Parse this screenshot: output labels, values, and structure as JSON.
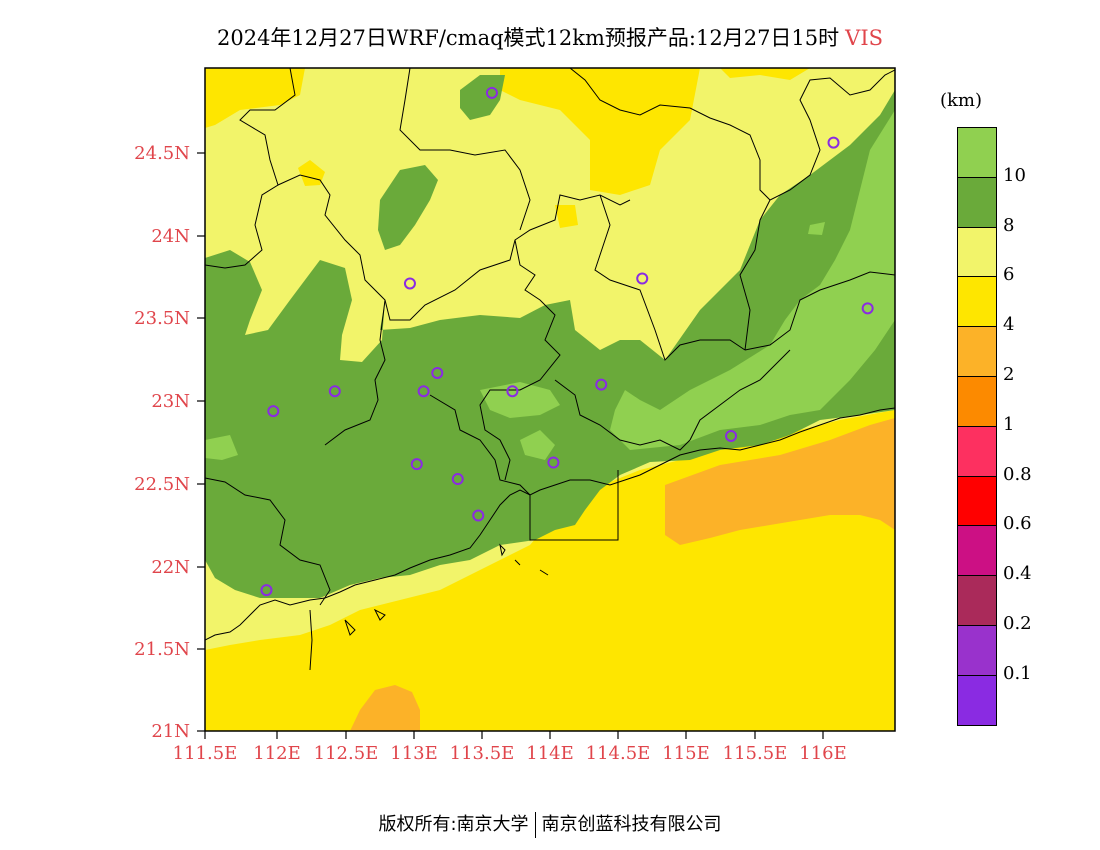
{
  "title": {
    "main": "2024年12月27日WRF/cmaq模式12km预报产品:12月27日15时",
    "variable": "VIS"
  },
  "axes": {
    "lat_labels": [
      "24.5N",
      "24N",
      "23.5N",
      "23N",
      "22.5N",
      "22N",
      "21.5N",
      "21N"
    ],
    "lon_labels": [
      "111.5E",
      "112E",
      "112.5E",
      "113E",
      "113.5E",
      "114E",
      "114.5E",
      "115E",
      "115.5E",
      "116E"
    ]
  },
  "colorbar": {
    "unit": "(km)",
    "colors": [
      "#90d050",
      "#6aaa3a",
      "#f2f46a",
      "#fee600",
      "#fcb228",
      "#fc8a00",
      "#fd3060",
      "#ff0000",
      "#cc1084",
      "#aa2a5a",
      "#9932cc",
      "#8a2be2"
    ],
    "labels": [
      "10",
      "8",
      "6",
      "4",
      "2",
      "1",
      "0.8",
      "0.6",
      "0.4",
      "0.2",
      "0.1"
    ]
  },
  "stations": [
    {
      "lon": 113.6,
      "lat": 24.85
    },
    {
      "lon": 116.1,
      "lat": 24.55
    },
    {
      "lon": 113.0,
      "lat": 23.7
    },
    {
      "lon": 114.7,
      "lat": 23.73
    },
    {
      "lon": 116.35,
      "lat": 23.55
    },
    {
      "lon": 112.0,
      "lat": 22.93
    },
    {
      "lon": 112.45,
      "lat": 23.05
    },
    {
      "lon": 113.1,
      "lat": 23.05
    },
    {
      "lon": 113.2,
      "lat": 23.16
    },
    {
      "lon": 113.75,
      "lat": 23.05
    },
    {
      "lon": 114.4,
      "lat": 23.09
    },
    {
      "lon": 115.35,
      "lat": 22.78
    },
    {
      "lon": 113.05,
      "lat": 22.61
    },
    {
      "lon": 113.35,
      "lat": 22.52
    },
    {
      "lon": 114.05,
      "lat": 22.62
    },
    {
      "lon": 113.5,
      "lat": 22.3
    },
    {
      "lon": 111.95,
      "lat": 21.85
    }
  ],
  "footer": {
    "left": "版权所有:南京大学",
    "right": "南京创蓝科技有限公司"
  }
}
